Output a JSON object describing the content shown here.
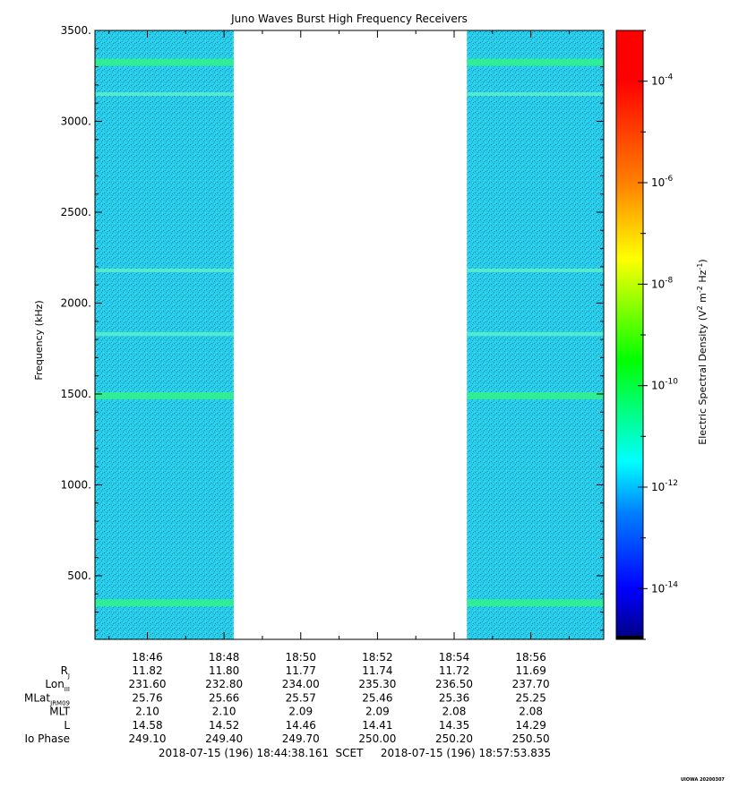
{
  "chart_data": {
    "type": "heatmap",
    "title": "Juno Waves Burst High Frequency Receivers",
    "ylabel": "Frequency (kHz)",
    "ylim": [
      150,
      3500
    ],
    "yticks": [
      "500.",
      "1000.",
      "1500.",
      "2000.",
      "2500.",
      "3000.",
      "3500."
    ],
    "ytick_values": [
      500,
      1000,
      1500,
      2000,
      2500,
      3000,
      3500
    ],
    "x_time_range": [
      "18:44:38",
      "18:57:54"
    ],
    "xticks": [
      "18:46",
      "18:48",
      "18:50",
      "18:52",
      "18:54",
      "18:56"
    ],
    "xtick_minutes": [
      2,
      4,
      6,
      8,
      10,
      12
    ],
    "data_gap": [
      "18:48:15",
      "18:54:20"
    ],
    "background_level": "10^-12",
    "bands_khz": [
      {
        "freq": 350,
        "level": "10^-11"
      },
      {
        "freq": 1490,
        "level": "10^-11"
      },
      {
        "freq": 1830,
        "level": "10^-11.5"
      },
      {
        "freq": 2180,
        "level": "10^-11.5"
      },
      {
        "freq": 3150,
        "level": "10^-11.5"
      },
      {
        "freq": 3325,
        "level": "10^-11"
      }
    ],
    "colorbar": {
      "label": "Electric Spectral Density (V² m⁻² Hz⁻¹)",
      "label_parts": {
        "a": "Electric Spectral Density (V",
        "b": "2",
        "c": " m",
        "d": "-2",
        "e": " Hz",
        "f": "-1",
        "g": ")"
      },
      "range_log10": [
        -15,
        -3
      ],
      "ticks": [
        {
          "base": "10",
          "exp": "-4",
          "value": -4
        },
        {
          "base": "10",
          "exp": "-6",
          "value": -6
        },
        {
          "base": "10",
          "exp": "-8",
          "value": -8
        },
        {
          "base": "10",
          "exp": "-10",
          "value": -10
        },
        {
          "base": "10",
          "exp": "-12",
          "value": -12
        },
        {
          "base": "10",
          "exp": "-14",
          "value": -14
        }
      ],
      "colors": [
        "#000080",
        "#0000ff",
        "#0080ff",
        "#00ffff",
        "#00ff80",
        "#00ff00",
        "#80ff00",
        "#ffff00",
        "#ff8000",
        "#ff0000"
      ]
    },
    "ephemeris": {
      "rows": [
        {
          "label": "R",
          "sub": "J",
          "values": [
            "11.82",
            "11.80",
            "11.77",
            "11.74",
            "11.72",
            "11.69"
          ]
        },
        {
          "label": "Lon",
          "sub": "III",
          "values": [
            "231.60",
            "232.80",
            "234.00",
            "235.30",
            "236.50",
            "237.70"
          ]
        },
        {
          "label": "MLat",
          "sub": "JRM09",
          "values": [
            "25.76",
            "25.66",
            "25.57",
            "25.46",
            "25.36",
            "25.25"
          ]
        },
        {
          "label": "MLT",
          "sub": "",
          "values": [
            "2.10",
            "2.10",
            "2.09",
            "2.09",
            "2.08",
            "2.08"
          ]
        },
        {
          "label": "L",
          "sub": "",
          "values": [
            "14.58",
            "14.52",
            "14.46",
            "14.41",
            "14.35",
            "14.29"
          ]
        },
        {
          "label": "Io Phase",
          "sub": "",
          "values": [
            "249.10",
            "249.40",
            "249.70",
            "250.00",
            "250.20",
            "250.50"
          ]
        }
      ]
    },
    "time_range_text": {
      "start": "2018-07-15 (196) 18:44:38.161",
      "mid": "SCET",
      "end": "2018-07-15 (196) 18:57:53.835"
    },
    "credit": "UIOWA 20200307"
  }
}
